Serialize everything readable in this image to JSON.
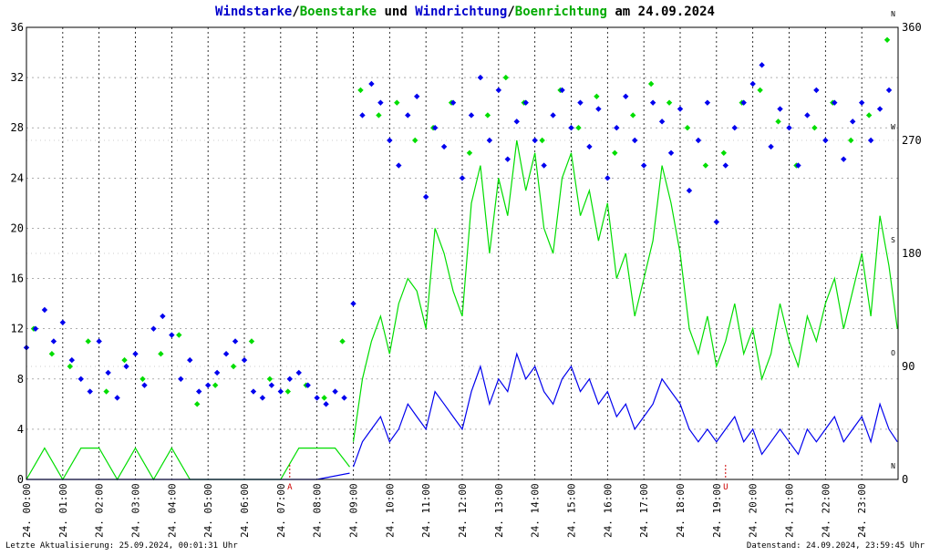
{
  "chart_data": {
    "type": "scatter",
    "title_parts": [
      {
        "text": "Windstarke",
        "color": "#0000cc"
      },
      {
        "text": "/",
        "color": "#000000"
      },
      {
        "text": "Boenstarke",
        "color": "#00aa00"
      },
      {
        "text": " und ",
        "color": "#000000"
      },
      {
        "text": "Windrichtung",
        "color": "#0000cc"
      },
      {
        "text": "/",
        "color": "#000000"
      },
      {
        "text": "Boenrichtung",
        "color": "#00aa00"
      },
      {
        "text": " am 24.09.2024",
        "color": "#000000"
      }
    ],
    "x_ticks": [
      "24. 00:00",
      "24. 01:00",
      "24. 02:00",
      "24. 03:00",
      "24. 04:00",
      "24. 05:00",
      "24. 06:00",
      "24. 07:00",
      "24. 08:00",
      "24. 09:00",
      "24. 10:00",
      "24. 11:00",
      "24. 12:00",
      "24. 13:00",
      "24. 14:00",
      "24. 15:00",
      "24. 16:00",
      "24. 17:00",
      "24. 18:00",
      "24. 19:00",
      "24. 20:00",
      "24. 21:00",
      "24. 22:00",
      "24. 23:00"
    ],
    "y_left": {
      "min": 0,
      "max": 36,
      "ticks": [
        "0",
        "4",
        "8",
        "12",
        "16",
        "20",
        "24",
        "28",
        "32",
        "36"
      ]
    },
    "y_right": {
      "min": 0,
      "max": 360,
      "ticks": [
        "0",
        "90",
        "180",
        "270",
        "360"
      ],
      "compass": [
        "N",
        "O",
        "S",
        "W",
        "N"
      ]
    },
    "markers": [
      {
        "label": "A",
        "hour": 7.25
      },
      {
        "label": "U",
        "hour": 19.25
      }
    ],
    "grid": true,
    "footer_left": "Letzte Aktualisierung: 25.09.2024, 00:01:31 Uhr",
    "footer_right": "Datenstand: 24.09.2024, 23:59:45 Uhr",
    "colors": {
      "wind": "#0000ee",
      "gust": "#00dd00",
      "grid": "#000000",
      "axis": "#000000"
    },
    "series": [
      {
        "name": "Windstarke",
        "kind": "line",
        "color": "#0000ee",
        "segments": [
          {
            "hours": [
              0.0,
              1.0,
              2.0,
              3.0,
              4.0,
              5.0,
              6.0,
              7.0,
              8.0,
              8.9
            ],
            "values": [
              0,
              0,
              0,
              0,
              0,
              0,
              0,
              0,
              0,
              0.5
            ]
          },
          {
            "hours": [
              9.0,
              9.25,
              9.5,
              9.75,
              10.0,
              10.25,
              10.5,
              10.75,
              11.0,
              11.25,
              11.5,
              11.75,
              12.0,
              12.25,
              12.5,
              12.75,
              13.0,
              13.25,
              13.5,
              13.75,
              14.0,
              14.25,
              14.5,
              14.75,
              15.0,
              15.25,
              15.5,
              15.75,
              16.0,
              16.25,
              16.5,
              16.75,
              17.0,
              17.25,
              17.5,
              17.75,
              18.0,
              18.25,
              18.5,
              18.75,
              19.0,
              19.25,
              19.5,
              19.75,
              20.0,
              20.25,
              20.5,
              20.75,
              21.0,
              21.25,
              21.5,
              21.75,
              22.0,
              22.25,
              22.5,
              22.75,
              23.0,
              23.25,
              23.5,
              23.75,
              23.98
            ],
            "values": [
              1,
              3,
              4,
              5,
              3,
              4,
              6,
              5,
              4,
              7,
              6,
              5,
              4,
              7,
              9,
              6,
              8,
              7,
              10,
              8,
              9,
              7,
              6,
              8,
              9,
              7,
              8,
              6,
              7,
              5,
              6,
              4,
              5,
              6,
              8,
              7,
              6,
              4,
              3,
              4,
              3,
              4,
              5,
              3,
              4,
              2,
              3,
              4,
              3,
              2,
              4,
              3,
              4,
              5,
              3,
              4,
              5,
              3,
              6,
              4,
              3
            ]
          }
        ]
      },
      {
        "name": "Boenstarke",
        "kind": "line",
        "color": "#00dd00",
        "segments": [
          {
            "hours": [
              0.0,
              0.5,
              1.0,
              1.5,
              2.0,
              2.5,
              3.0,
              3.5,
              4.0,
              4.5,
              5.0,
              5.5,
              6.0,
              6.5,
              7.0,
              7.5,
              8.0,
              8.5,
              8.9
            ],
            "values": [
              0,
              2.5,
              0,
              2.5,
              2.5,
              0,
              2.5,
              0,
              2.5,
              0,
              0,
              0,
              0,
              0,
              0,
              2.5,
              2.5,
              2.5,
              1
            ]
          },
          {
            "hours": [
              9.0,
              9.25,
              9.5,
              9.75,
              10.0,
              10.25,
              10.5,
              10.75,
              11.0,
              11.25,
              11.5,
              11.75,
              12.0,
              12.25,
              12.5,
              12.75,
              13.0,
              13.25,
              13.5,
              13.75,
              14.0,
              14.25,
              14.5,
              14.75,
              15.0,
              15.25,
              15.5,
              15.75,
              16.0,
              16.25,
              16.5,
              16.75,
              17.0,
              17.25,
              17.5,
              17.75,
              18.0,
              18.25,
              18.5,
              18.75,
              19.0,
              19.25,
              19.5,
              19.75,
              20.0,
              20.25,
              20.5,
              20.75,
              21.0,
              21.25,
              21.5,
              21.75,
              22.0,
              22.25,
              22.5,
              22.75,
              23.0,
              23.25,
              23.5,
              23.75,
              23.98
            ],
            "values": [
              3,
              8,
              11,
              13,
              10,
              14,
              16,
              15,
              12,
              20,
              18,
              15,
              13,
              22,
              25,
              18,
              24,
              21,
              27,
              23,
              26,
              20,
              18,
              24,
              26,
              21,
              23,
              19,
              22,
              16,
              18,
              13,
              16,
              19,
              25,
              22,
              18,
              12,
              10,
              13,
              9,
              11,
              14,
              10,
              12,
              8,
              10,
              14,
              11,
              9,
              13,
              11,
              14,
              16,
              12,
              15,
              18,
              13,
              21,
              17,
              12
            ]
          }
        ]
      },
      {
        "name": "Windrichtung",
        "kind": "scatter",
        "color": "#0000ee",
        "axis": "right",
        "hours": [
          0.0,
          0.25,
          0.5,
          0.75,
          1.0,
          1.25,
          1.5,
          1.75,
          2.0,
          2.25,
          2.5,
          2.75,
          3.0,
          3.25,
          3.5,
          3.75,
          4.0,
          4.25,
          4.5,
          4.75,
          5.0,
          5.25,
          5.5,
          5.75,
          6.0,
          6.25,
          6.5,
          6.75,
          7.0,
          7.25,
          7.5,
          7.75,
          8.0,
          8.25,
          8.5,
          8.75,
          9.0,
          9.25,
          9.5,
          9.75,
          10.0,
          10.25,
          10.5,
          10.75,
          11.0,
          11.25,
          11.5,
          11.75,
          12.0,
          12.25,
          12.5,
          12.75,
          13.0,
          13.25,
          13.5,
          13.75,
          14.0,
          14.25,
          14.5,
          14.75,
          15.0,
          15.25,
          15.5,
          15.75,
          16.0,
          16.25,
          16.5,
          16.75,
          17.0,
          17.25,
          17.5,
          17.75,
          18.0,
          18.25,
          18.5,
          18.75,
          19.0,
          19.25,
          19.5,
          19.75,
          20.0,
          20.25,
          20.5,
          20.75,
          21.0,
          21.25,
          21.5,
          21.75,
          22.0,
          22.25,
          22.5,
          22.75,
          23.0,
          23.25,
          23.5,
          23.75
        ],
        "values": [
          105,
          120,
          135,
          110,
          125,
          95,
          80,
          70,
          110,
          85,
          65,
          90,
          100,
          75,
          120,
          130,
          115,
          80,
          95,
          70,
          75,
          85,
          100,
          110,
          95,
          70,
          65,
          75,
          70,
          80,
          85,
          75,
          65,
          60,
          70,
          65,
          140,
          290,
          315,
          300,
          270,
          250,
          290,
          305,
          225,
          280,
          265,
          300,
          240,
          290,
          320,
          270,
          310,
          255,
          285,
          300,
          270,
          250,
          290,
          310,
          280,
          300,
          265,
          295,
          240,
          280,
          305,
          270,
          250,
          300,
          285,
          260,
          295,
          230,
          270,
          300,
          205,
          250,
          280,
          300,
          315,
          330,
          265,
          295,
          280,
          250,
          290,
          310,
          270,
          300,
          255,
          285,
          300,
          270,
          295,
          310
        ]
      },
      {
        "name": "Boenrichtung",
        "kind": "scatter",
        "color": "#00dd00",
        "axis": "right",
        "hours": [
          0.2,
          0.7,
          1.2,
          1.7,
          2.2,
          2.7,
          3.2,
          3.7,
          4.2,
          4.7,
          5.2,
          5.7,
          6.2,
          6.7,
          7.2,
          7.7,
          8.2,
          8.7,
          9.2,
          9.7,
          10.2,
          10.7,
          11.2,
          11.7,
          12.2,
          12.7,
          13.2,
          13.7,
          14.2,
          14.7,
          15.2,
          15.7,
          16.2,
          16.7,
          17.2,
          17.7,
          18.2,
          18.7,
          19.2,
          19.7,
          20.2,
          20.7,
          21.2,
          21.7,
          22.2,
          22.7,
          23.2,
          23.7
        ],
        "values": [
          120,
          100,
          90,
          110,
          70,
          95,
          80,
          100,
          115,
          60,
          75,
          90,
          110,
          80,
          70,
          75,
          65,
          110,
          310,
          290,
          300,
          270,
          280,
          300,
          260,
          290,
          320,
          300,
          270,
          310,
          280,
          305,
          260,
          290,
          315,
          300,
          280,
          250,
          260,
          300,
          310,
          285,
          250,
          280,
          300,
          270,
          290,
          350
        ]
      }
    ]
  }
}
